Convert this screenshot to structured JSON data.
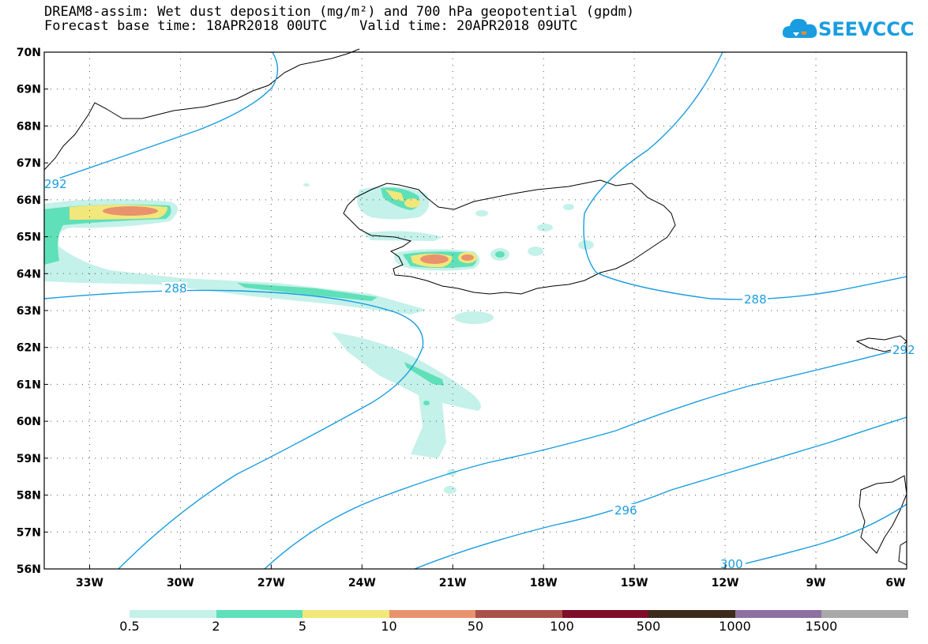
{
  "header": {
    "title_line1": "DREAM8-assim: Wet dust deposition (mg/m²) and 700 hPa geopotential (gpdm)",
    "title_line2": "Forecast base time: 18APR2018 00UTC    Valid time: 20APR2018 09UTC"
  },
  "logo": {
    "text": "SEEVCCC",
    "icon": "cloud-icon",
    "color": "#1a9de0"
  },
  "map": {
    "lat_labels": [
      "70N",
      "69N",
      "68N",
      "67N",
      "66N",
      "65N",
      "64N",
      "63N",
      "62N",
      "61N",
      "60N",
      "59N",
      "58N",
      "57N",
      "56N"
    ],
    "lon_labels": [
      "33W",
      "30W",
      "27W",
      "24W",
      "21W",
      "18W",
      "15W",
      "12W",
      "9W",
      "6W"
    ],
    "contour_labels": [
      "292",
      "288",
      "288",
      "292",
      "296",
      "300"
    ],
    "contour_color": "#1a9de0"
  },
  "colorbar": {
    "labels": [
      "0.5",
      "2",
      "5",
      "10",
      "50",
      "100",
      "500",
      "1000",
      "1500"
    ],
    "colors": [
      "#c4f1ea",
      "#5fe0b8",
      "#f2e77a",
      "#e8936e",
      "#a9524a",
      "#7e0d2a",
      "#3c2a1a",
      "#8f6fa1",
      "#a8a8a8"
    ]
  }
}
